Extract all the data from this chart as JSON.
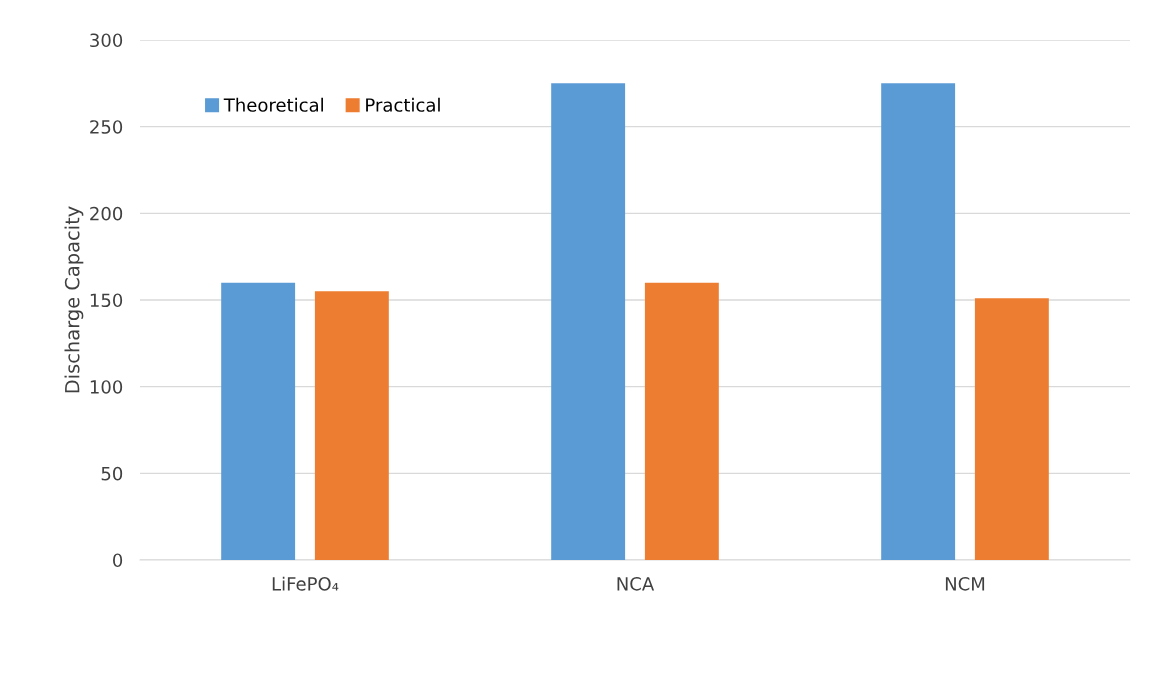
{
  "chart_data": {
    "type": "bar",
    "ylabel": "Discharge Capacity",
    "categories": [
      "LiFePO₄",
      "NCA",
      "NCM"
    ],
    "series": [
      {
        "name": "Theoretical",
        "color": "#5b9bd5",
        "values": [
          160,
          275,
          275
        ]
      },
      {
        "name": "Practical",
        "color": "#ed7d31",
        "values": [
          155,
          160,
          151
        ]
      }
    ],
    "ylim": [
      0,
      300
    ],
    "yticks": [
      0,
      50,
      100,
      150,
      200,
      250,
      300
    ],
    "grid": "y",
    "legend": "top left"
  }
}
